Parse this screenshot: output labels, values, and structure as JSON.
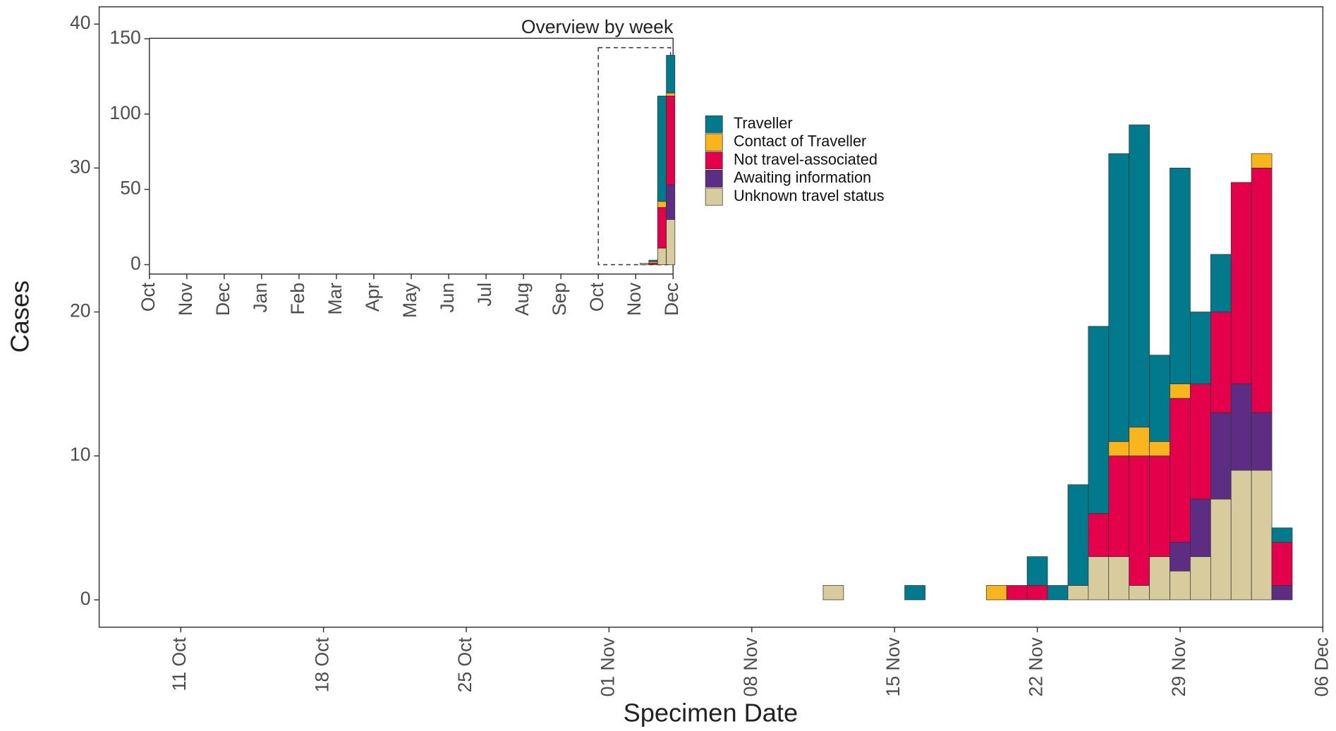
{
  "chart_data": [
    {
      "type": "bar",
      "stacked": true,
      "xlabel": "Specimen Date",
      "ylabel": "Cases",
      "x": [
        "12 Nov",
        "16 Nov",
        "20 Nov",
        "21 Nov",
        "22 Nov",
        "23 Nov",
        "24 Nov",
        "25 Nov",
        "26 Nov",
        "27 Nov",
        "28 Nov",
        "29 Nov",
        "30 Nov",
        "01 Dec",
        "02 Dec",
        "03 Dec",
        "04 Dec"
      ],
      "series": [
        {
          "name": "Traveller",
          "color": "#007a8c",
          "values": [
            0,
            1,
            0,
            0,
            2,
            1,
            7,
            13,
            20,
            21,
            6,
            15,
            5,
            4,
            0,
            0,
            1
          ]
        },
        {
          "name": "Contact of Traveller",
          "color": "#f9b51e",
          "values": [
            0,
            0,
            1,
            0,
            0,
            0,
            0,
            0,
            1,
            2,
            1,
            1,
            0,
            0,
            0,
            1,
            0
          ]
        },
        {
          "name": "Not travel-associated",
          "color": "#e4004b",
          "values": [
            0,
            0,
            0,
            1,
            1,
            0,
            0,
            3,
            7,
            9,
            7,
            10,
            8,
            7,
            14,
            17,
            3
          ]
        },
        {
          "name": "Awaiting information",
          "color": "#5c2d83",
          "values": [
            0,
            0,
            0,
            0,
            0,
            0,
            0,
            0,
            0,
            0,
            0,
            2,
            4,
            6,
            6,
            4,
            1
          ]
        },
        {
          "name": "Unknown travel status",
          "color": "#d8cc9f",
          "values": [
            1,
            0,
            0,
            0,
            0,
            0,
            1,
            3,
            3,
            1,
            3,
            2,
            3,
            7,
            9,
            9,
            0
          ]
        }
      ],
      "xlim": [
        "07 Oct",
        "06 Dec"
      ],
      "xticks": [
        "11 Oct",
        "18 Oct",
        "25 Oct",
        "01 Nov",
        "08 Nov",
        "15 Nov",
        "22 Nov",
        "29 Nov",
        "06 Dec"
      ],
      "ylim": [
        -1.9,
        41.2
      ],
      "yticks": [
        0,
        10,
        20,
        30,
        40
      ],
      "grid": false
    },
    {
      "type": "bar",
      "stacked": true,
      "title": "Overview by week",
      "x": [
        "08 Nov",
        "15 Nov",
        "22 Nov",
        "29 Nov"
      ],
      "series": [
        {
          "name": "Traveller",
          "color": "#007a8c",
          "values": [
            0,
            1,
            70,
            25
          ]
        },
        {
          "name": "Contact of Traveller",
          "color": "#f9b51e",
          "values": [
            0,
            1,
            4,
            2
          ]
        },
        {
          "name": "Not travel-associated",
          "color": "#e4004b",
          "values": [
            0,
            1,
            27,
            59
          ]
        },
        {
          "name": "Awaiting information",
          "color": "#5c2d83",
          "values": [
            0,
            0,
            0,
            23
          ]
        },
        {
          "name": "Unknown travel status",
          "color": "#d8cc9f",
          "values": [
            1,
            0,
            11,
            30
          ]
        }
      ],
      "xticks": [
        "Oct",
        "Nov",
        "Dec",
        "Jan",
        "Feb",
        "Mar",
        "Apr",
        "May",
        "Jun",
        "Jul",
        "Aug",
        "Sep",
        "Oct",
        "Nov",
        "Dec"
      ],
      "ylim": [
        -6.2,
        150.3
      ],
      "yticks": [
        0,
        50,
        100,
        150
      ],
      "grid": false
    }
  ]
}
